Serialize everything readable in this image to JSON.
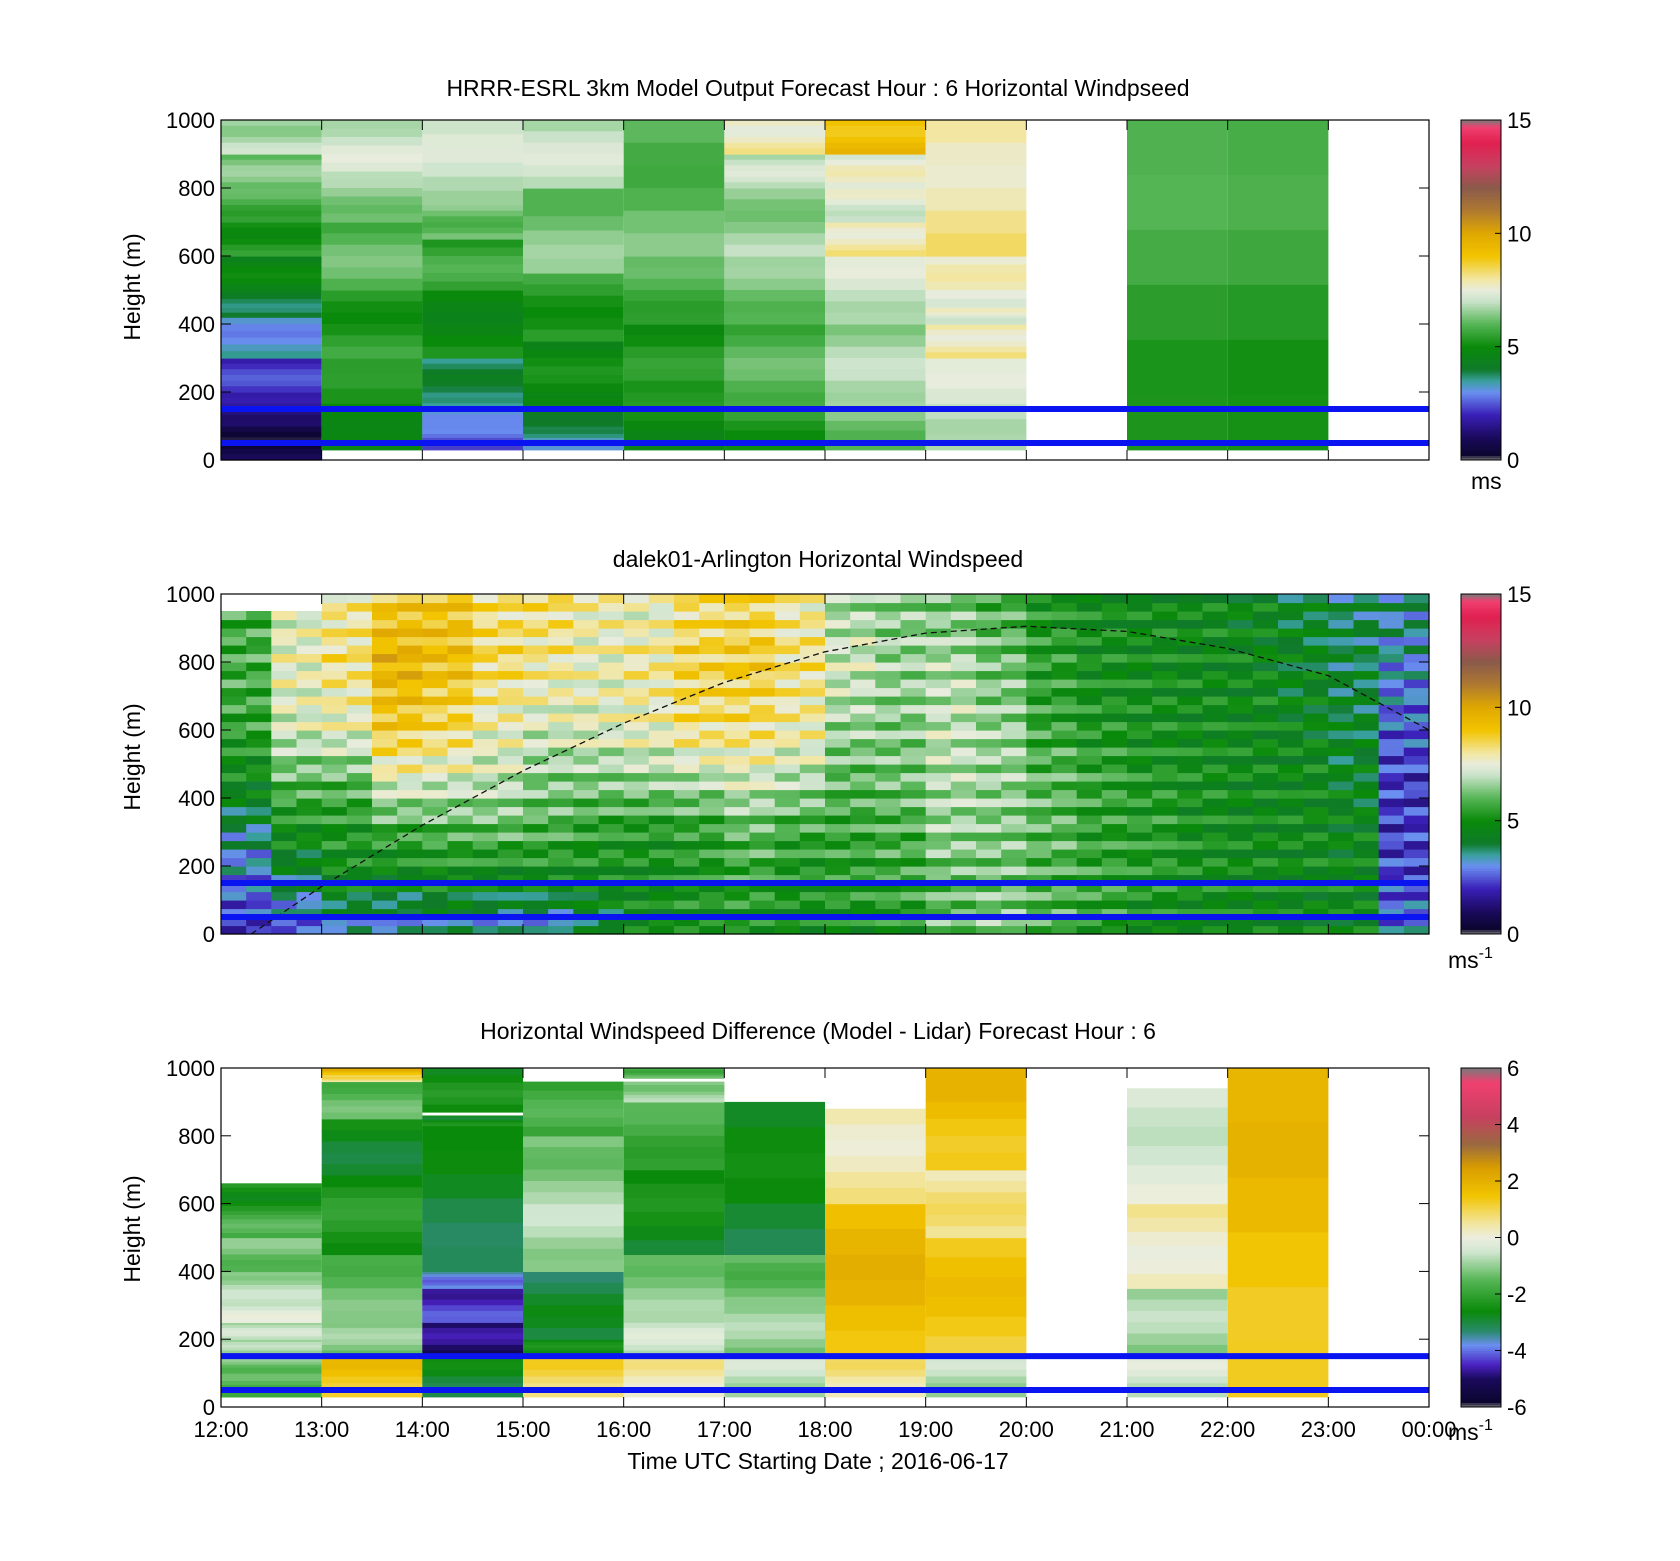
{
  "chart_data": [
    {
      "type": "heatmap",
      "title": "HRRR-ESRL 3km Model Output   Forecast Hour : 6 Horizontal Windpseed",
      "ylabel": "Height (m)",
      "xlim": [
        12,
        24
      ],
      "ylim": [
        0,
        1000
      ],
      "yticks": [
        "0",
        "200",
        "400",
        "600",
        "800",
        "1000"
      ],
      "colorbar": {
        "min": 0,
        "max": 15,
        "ticks": [
          "0",
          "5",
          "10",
          "15"
        ],
        "unit": "ms",
        "unit_sup": ""
      },
      "reference_heights": [
        150,
        50
      ],
      "columns": [
        {
          "start": 12,
          "end": 13,
          "cells": [
            [
              0,
              100,
              0.6
            ],
            [
              100,
              200,
              1.5
            ],
            [
              200,
              300,
              2.2
            ],
            [
              300,
              420,
              3.2
            ],
            [
              420,
              500,
              4.0
            ],
            [
              500,
              600,
              4.7
            ],
            [
              600,
              700,
              5.2
            ],
            [
              700,
              800,
              5.8
            ],
            [
              800,
              900,
              6.3
            ],
            [
              900,
              1000,
              6.8
            ]
          ]
        },
        {
          "start": 13,
          "end": 14,
          "cells": [
            [
              30,
              300,
              5.1
            ],
            [
              300,
              500,
              5.4
            ],
            [
              500,
              700,
              6.0
            ],
            [
              700,
              850,
              6.5
            ],
            [
              850,
              1000,
              7.1
            ]
          ]
        },
        {
          "start": 14,
          "end": 15,
          "cells": [
            [
              30,
              100,
              2.6
            ],
            [
              100,
              200,
              3.3
            ],
            [
              200,
              300,
              3.9
            ],
            [
              300,
              500,
              4.9
            ],
            [
              500,
              650,
              5.6
            ],
            [
              650,
              750,
              6.2
            ],
            [
              750,
              1000,
              7.0
            ]
          ]
        },
        {
          "start": 15,
          "end": 16,
          "cells": [
            [
              30,
              100,
              3.5
            ],
            [
              100,
              200,
              4.4
            ],
            [
              200,
              350,
              4.9
            ],
            [
              350,
              550,
              5.4
            ],
            [
              550,
              800,
              6.3
            ],
            [
              800,
              1000,
              7.0
            ]
          ]
        },
        {
          "start": 16,
          "end": 17,
          "cells": [
            [
              30,
              200,
              5.0
            ],
            [
              200,
              400,
              5.2
            ],
            [
              400,
              600,
              5.8
            ],
            [
              600,
              1000,
              6.1
            ]
          ]
        },
        {
          "start": 17,
          "end": 18,
          "cells": [
            [
              30,
              200,
              5.4
            ],
            [
              200,
              400,
              5.9
            ],
            [
              400,
              600,
              6.3
            ],
            [
              600,
              800,
              6.6
            ],
            [
              800,
              900,
              7.0
            ],
            [
              900,
              1000,
              7.8
            ]
          ]
        },
        {
          "start": 18,
          "end": 19,
          "cells": [
            [
              30,
              200,
              6.3
            ],
            [
              200,
              400,
              6.7
            ],
            [
              400,
              600,
              7.1
            ],
            [
              600,
              700,
              7.9
            ],
            [
              700,
              800,
              7.3
            ],
            [
              800,
              900,
              7.5
            ],
            [
              900,
              1000,
              9.2
            ]
          ]
        },
        {
          "start": 19,
          "end": 20,
          "cells": [
            [
              30,
              300,
              7.1
            ],
            [
              300,
              400,
              7.9
            ],
            [
              400,
              450,
              7.4
            ],
            [
              450,
              600,
              7.6
            ],
            [
              600,
              1000,
              8.0
            ]
          ]
        },
        {
          "start": 21,
          "end": 22,
          "cells": [
            [
              30,
              1000,
              5.6
            ]
          ]
        },
        {
          "start": 22,
          "end": 23,
          "cells": [
            [
              30,
              1000,
              5.5
            ]
          ]
        }
      ]
    },
    {
      "type": "heatmap",
      "title": "dalek01-Arlington  Horizontal Windspeed",
      "ylabel": "Height (m)",
      "xlim": [
        12,
        24
      ],
      "ylim": [
        0,
        1000
      ],
      "yticks": [
        "0",
        "200",
        "400",
        "600",
        "800",
        "1000"
      ],
      "colorbar": {
        "min": 0,
        "max": 15,
        "ticks": [
          "0",
          "5",
          "10",
          "15"
        ],
        "unit": "ms",
        "unit_sup": "-1"
      },
      "reference_heights": [
        150,
        50
      ],
      "curve": [
        [
          12.3,
          0
        ],
        [
          13,
          140
        ],
        [
          14,
          320
        ],
        [
          15,
          480
        ],
        [
          16,
          620
        ],
        [
          17,
          740
        ],
        [
          18,
          830
        ],
        [
          19,
          885
        ],
        [
          20,
          905
        ],
        [
          21,
          890
        ],
        [
          22,
          840
        ],
        [
          23,
          760
        ],
        [
          24,
          600
        ]
      ],
      "profile": [
        [
          12.0,
          2.2,
          2.8,
          3.6,
          4.8,
          5.5,
          5.8,
          5.6
        ],
        [
          12.5,
          2.6,
          3.8,
          5.0,
          6.0,
          7.2,
          7.6,
          7.2
        ],
        [
          13.0,
          3.2,
          4.8,
          5.2,
          6.0,
          7.5,
          8.2,
          7.9
        ],
        [
          13.5,
          3.0,
          4.6,
          5.6,
          7.4,
          8.8,
          9.6,
          8.8
        ],
        [
          14.0,
          3.4,
          4.9,
          5.8,
          7.2,
          8.4,
          9.2,
          9.0
        ],
        [
          14.5,
          3.0,
          4.6,
          6.0,
          7.0,
          7.6,
          8.4,
          8.2
        ],
        [
          15.0,
          2.8,
          4.8,
          5.8,
          6.4,
          7.2,
          8.0,
          8.3
        ],
        [
          15.5,
          3.8,
          4.9,
          5.4,
          6.4,
          7.4,
          7.6,
          7.8
        ],
        [
          16.0,
          4.6,
          5.0,
          5.2,
          6.6,
          7.6,
          8.0,
          7.4
        ],
        [
          16.5,
          4.8,
          5.3,
          5.4,
          6.8,
          8.2,
          8.6,
          8.2
        ],
        [
          17.0,
          4.9,
          5.6,
          6.0,
          7.2,
          8.2,
          8.8,
          8.4
        ],
        [
          17.5,
          4.8,
          5.2,
          5.6,
          6.8,
          7.8,
          8.2,
          7.8
        ],
        [
          18.0,
          5.0,
          5.4,
          5.6,
          6.0,
          6.6,
          7.2,
          6.6
        ],
        [
          18.5,
          5.2,
          5.6,
          5.8,
          6.2,
          6.4,
          6.6,
          6.4
        ],
        [
          19.0,
          6.2,
          6.0,
          6.6,
          6.8,
          7.0,
          6.8,
          6.2
        ],
        [
          19.5,
          6.6,
          6.2,
          6.4,
          6.6,
          6.6,
          6.2,
          5.8
        ],
        [
          20.0,
          6.0,
          5.8,
          6.0,
          6.0,
          5.6,
          5.4,
          5.2
        ],
        [
          20.5,
          5.4,
          5.6,
          5.4,
          5.6,
          5.2,
          5.0,
          4.9
        ],
        [
          21.0,
          5.0,
          5.2,
          5.4,
          5.2,
          5.0,
          4.9,
          4.8
        ],
        [
          21.5,
          4.9,
          5.0,
          5.0,
          5.0,
          4.9,
          4.8,
          4.8
        ],
        [
          22.0,
          4.8,
          4.9,
          4.8,
          4.8,
          4.8,
          4.7,
          4.6
        ],
        [
          22.5,
          4.6,
          4.8,
          4.8,
          4.8,
          4.6,
          4.4,
          4.2
        ],
        [
          23.0,
          4.6,
          4.8,
          4.6,
          4.4,
          4.2,
          4.0,
          3.8
        ],
        [
          23.5,
          3.0,
          2.4,
          2.2,
          2.2,
          2.6,
          3.2,
          3.6
        ]
      ]
    },
    {
      "type": "heatmap",
      "title": "Horizontal Windspeed Difference (Model - Lidar) Forecast Hour : 6",
      "ylabel": "Height (m)",
      "xlabel": "Time UTC  Starting Date ; 2016-06-17",
      "xticks": [
        "12:00",
        "13:00",
        "14:00",
        "15:00",
        "16:00",
        "17:00",
        "18:00",
        "19:00",
        "20:00",
        "21:00",
        "22:00",
        "23:00",
        "00:00"
      ],
      "xlim": [
        12,
        24
      ],
      "ylim": [
        0,
        1000
      ],
      "yticks": [
        "0",
        "200",
        "400",
        "600",
        "800",
        "1000"
      ],
      "colorbar": {
        "min": -6,
        "max": 6,
        "ticks": [
          "-6",
          "-4",
          "-2",
          "0",
          "2",
          "4",
          "6"
        ],
        "unit": "ms",
        "unit_sup": "-1"
      },
      "reference_heights": [
        150,
        50
      ],
      "columns": [
        {
          "start": 12,
          "end": 13,
          "cells": [
            [
              30,
              100,
              -1.6
            ],
            [
              100,
              150,
              -1.3
            ],
            [
              150,
              200,
              -0.9
            ],
            [
              200,
              250,
              -0.6
            ],
            [
              250,
              320,
              -0.3
            ],
            [
              320,
              400,
              -0.8
            ],
            [
              400,
              500,
              -1.3
            ],
            [
              500,
              580,
              -1.7
            ],
            [
              580,
              660,
              -2.4
            ]
          ]
        },
        {
          "start": 13,
          "end": 14,
          "cells": [
            [
              30,
              150,
              1.5
            ],
            [
              150,
              250,
              -1.1
            ],
            [
              250,
              450,
              -1.4
            ],
            [
              450,
              650,
              -2.3
            ],
            [
              650,
              850,
              -2.7
            ],
            [
              850,
              960,
              -1.5
            ],
            [
              960,
              980,
              0.8
            ],
            [
              980,
              1000,
              1.8
            ]
          ]
        },
        {
          "start": 14,
          "end": 15,
          "cells": [
            [
              30,
              150,
              -2.8
            ],
            [
              150,
              250,
              -4.9
            ],
            [
              250,
              350,
              -4.4
            ],
            [
              350,
              400,
              -3.8
            ],
            [
              400,
              830,
              -2.9
            ],
            [
              830,
              860,
              -2.6
            ],
            [
              870,
              1000,
              -2.5
            ]
          ]
        },
        {
          "start": 15,
          "end": 16,
          "cells": [
            [
              30,
              150,
              1.0
            ],
            [
              150,
              200,
              -2.6
            ],
            [
              200,
              400,
              -3.0
            ],
            [
              400,
              600,
              -0.8
            ],
            [
              600,
              800,
              -1.1
            ],
            [
              800,
              960,
              -1.8
            ]
          ]
        },
        {
          "start": 16,
          "end": 17,
          "cells": [
            [
              30,
              150,
              0.4
            ],
            [
              150,
              250,
              -0.5
            ],
            [
              250,
              450,
              -1.1
            ],
            [
              450,
              700,
              -2.6
            ],
            [
              700,
              900,
              -1.8
            ],
            [
              900,
              960,
              -1.0
            ],
            [
              970,
              1000,
              -1.6
            ]
          ]
        },
        {
          "start": 17,
          "end": 18,
          "cells": [
            [
              30,
              150,
              -0.6
            ],
            [
              150,
              300,
              -1.0
            ],
            [
              300,
              450,
              -1.4
            ],
            [
              450,
              900,
              -2.8
            ]
          ]
        },
        {
          "start": 18,
          "end": 19,
          "cells": [
            [
              30,
              150,
              0.6
            ],
            [
              150,
              600,
              1.7
            ],
            [
              600,
              880,
              0.4
            ]
          ]
        },
        {
          "start": 19,
          "end": 20,
          "cells": [
            [
              30,
              150,
              -0.7
            ],
            [
              150,
              500,
              1.4
            ],
            [
              500,
              700,
              0.6
            ],
            [
              700,
              1000,
              1.6
            ]
          ]
        },
        {
          "start": 21,
          "end": 22,
          "cells": [
            [
              30,
              150,
              -0.4
            ],
            [
              150,
              350,
              -0.9
            ],
            [
              350,
              600,
              0.3
            ],
            [
              600,
              940,
              -0.3
            ]
          ]
        },
        {
          "start": 22,
          "end": 23,
          "cells": [
            [
              30,
              1000,
              1.6
            ]
          ]
        }
      ]
    }
  ]
}
